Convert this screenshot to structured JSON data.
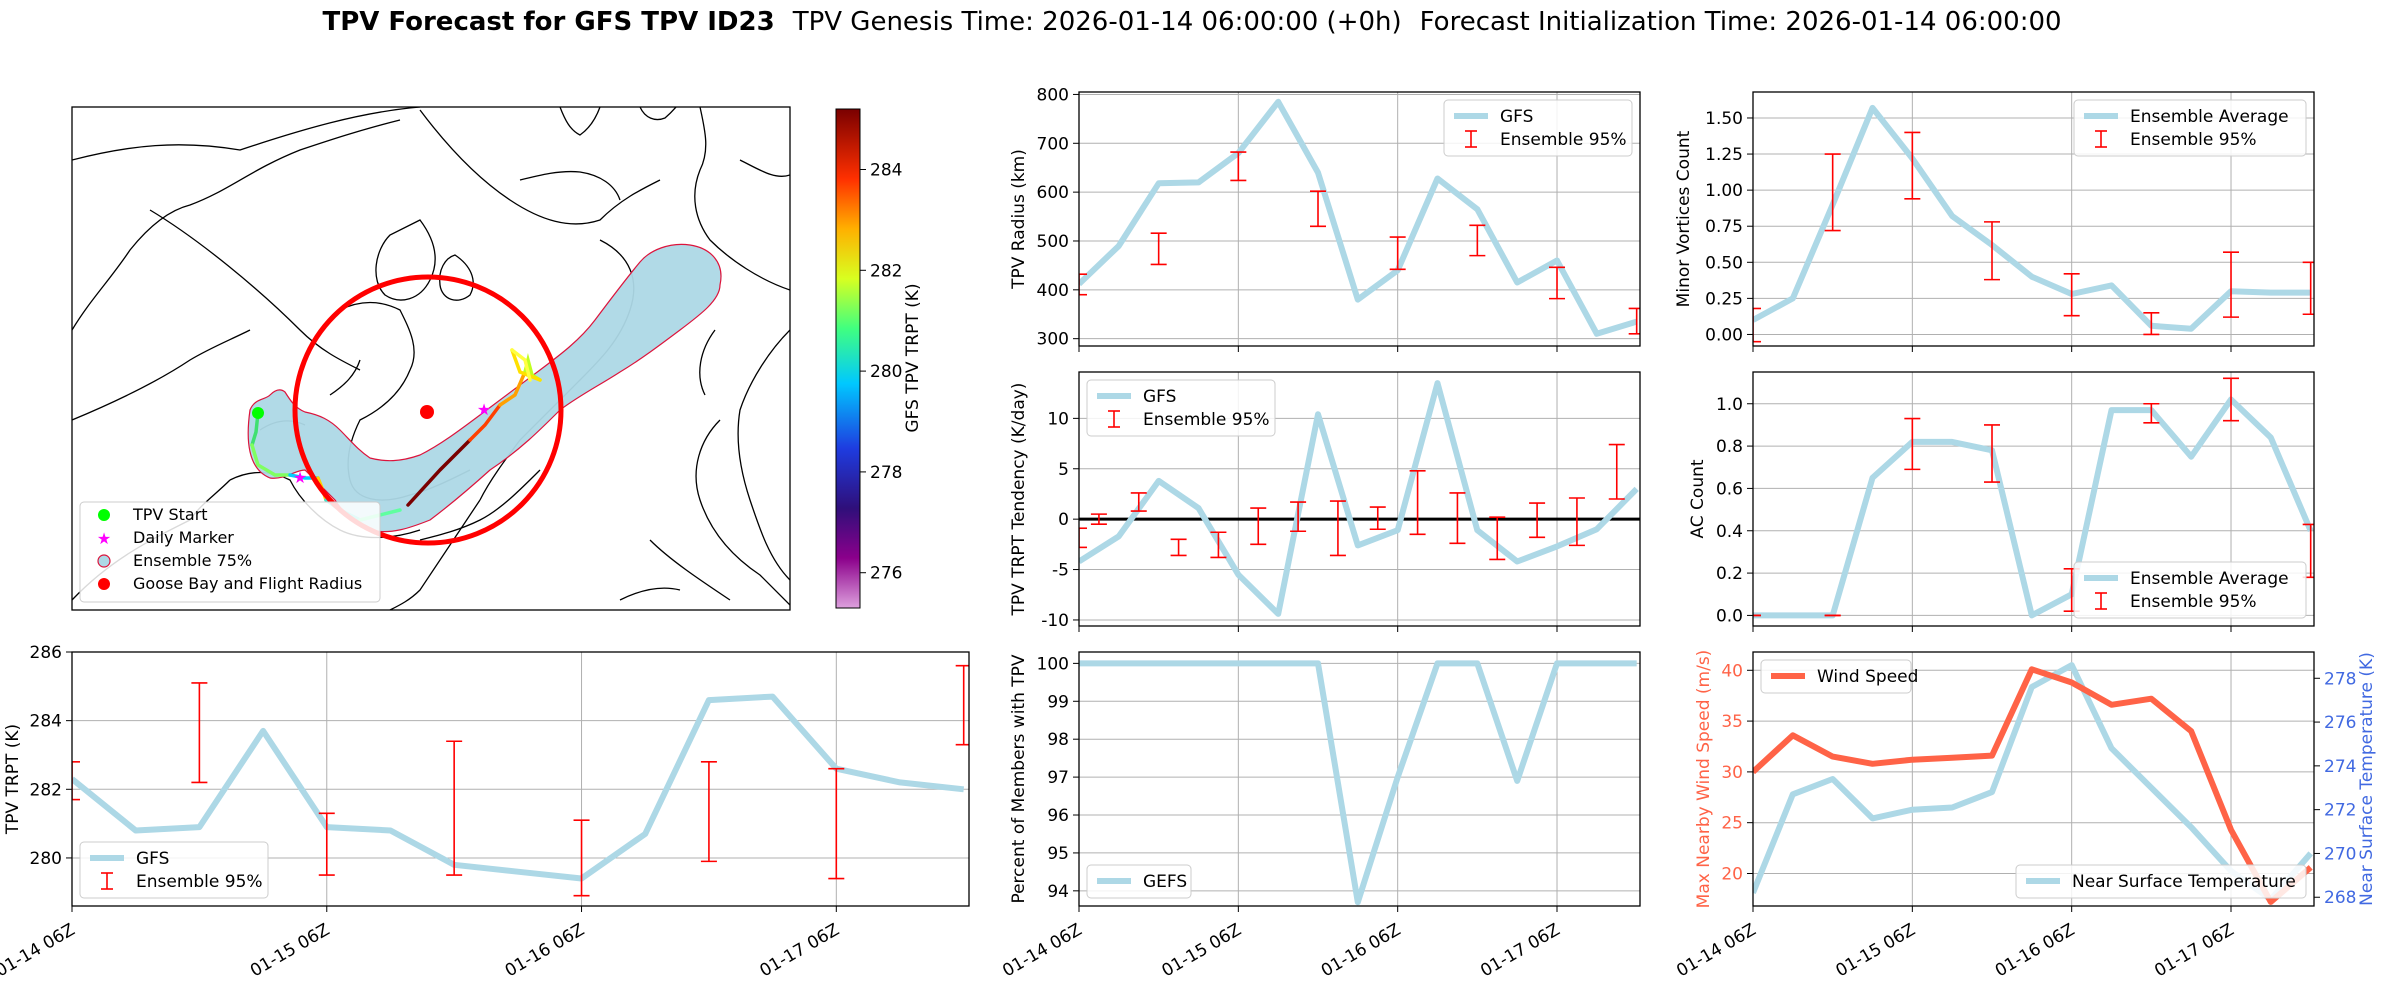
{
  "header": {
    "title_bold": "TPV Forecast for GFS TPV ID23",
    "genesis": "TPV Genesis Time: 2026-01-14 06:00:00 (+0h)",
    "init": "Forecast Initialization Time: 2026-01-14 06:00:00"
  },
  "colors": {
    "gfs_line": "#add8e6",
    "errorbar": "#ff0000",
    "wind": "#ff6347",
    "temp_axis": "#4169e1",
    "circle": "#ff0000",
    "marker_start": "#00ff00",
    "marker_daily": "#ff00ff",
    "goose_bay": "#ff0000"
  },
  "time_ticks": [
    "01-14 06Z",
    "01-15 06Z",
    "01-16 06Z",
    "01-17 06Z"
  ],
  "map": {
    "legend": [
      "TPV Start",
      "Daily Marker",
      "Ensemble 75%",
      "Goose Bay and Flight Radius"
    ],
    "colorbar_label": "GFS TPV TRPT (K)",
    "colorbar_ticks": [
      276,
      278,
      280,
      282,
      284
    ],
    "colorbar_range": [
      275.3,
      285.2
    ]
  },
  "chart_data": [
    {
      "id": "radius",
      "type": "line",
      "ylabel": "TPV Radius (km)",
      "ylim": [
        285,
        805
      ],
      "yticks": [
        300,
        400,
        500,
        600,
        700,
        800
      ],
      "legend_position": "upper right",
      "series": [
        {
          "name": "GFS",
          "kind": "line",
          "x": [
            0,
            6,
            12,
            18,
            24,
            30,
            36,
            42,
            48,
            54,
            60,
            66,
            72,
            78,
            84
          ],
          "y": [
            412,
            490,
            618,
            620,
            680,
            785,
            640,
            380,
            440,
            628,
            565,
            415,
            460,
            310,
            335
          ]
        },
        {
          "name": "Ensemble 95%",
          "kind": "errorbar",
          "x": [
            0,
            12,
            24,
            36,
            48,
            60,
            72,
            84
          ],
          "lo": [
            390,
            452,
            624,
            530,
            442,
            470,
            382,
            310
          ],
          "hi": [
            432,
            516,
            682,
            602,
            508,
            532,
            446,
            362
          ]
        }
      ]
    },
    {
      "id": "minor",
      "type": "line",
      "ylabel": "Minor Vortices Count",
      "ylim": [
        -0.08,
        1.68
      ],
      "yticks": [
        0.0,
        0.25,
        0.5,
        0.75,
        1.0,
        1.25,
        1.5
      ],
      "ytick_labels": [
        "0.00",
        "0.25",
        "0.50",
        "0.75",
        "1.00",
        "1.25",
        "1.50"
      ],
      "legend_position": "upper right",
      "series": [
        {
          "name": "Ensemble Average",
          "kind": "line",
          "x": [
            0,
            6,
            12,
            18,
            24,
            30,
            36,
            42,
            48,
            54,
            60,
            66,
            72,
            78,
            84
          ],
          "y": [
            0.1,
            0.25,
            0.9,
            1.57,
            1.22,
            0.82,
            0.62,
            0.4,
            0.28,
            0.34,
            0.06,
            0.04,
            0.3,
            0.29,
            0.29
          ]
        },
        {
          "name": "Ensemble 95%",
          "kind": "errorbar",
          "x": [
            0,
            12,
            24,
            36,
            48,
            60,
            72,
            84
          ],
          "lo": [
            -0.05,
            0.72,
            0.94,
            0.38,
            0.13,
            0.0,
            0.12,
            0.14
          ],
          "hi": [
            0.18,
            1.25,
            1.4,
            0.78,
            0.42,
            0.15,
            0.57,
            0.5
          ]
        }
      ]
    },
    {
      "id": "tend",
      "type": "line",
      "ylabel": "TPV TRPT Tendency (K/day)",
      "ylim": [
        -10.6,
        14.6
      ],
      "yticks": [
        -10,
        -5,
        0,
        5,
        10
      ],
      "legend_position": "upper left",
      "series": [
        {
          "name": "GFS",
          "kind": "line",
          "x": [
            0,
            6,
            12,
            18,
            24,
            30,
            36,
            42,
            48,
            54,
            60,
            66,
            72,
            78,
            84
          ],
          "y": [
            -4.2,
            -1.7,
            3.8,
            1.1,
            -5.5,
            -9.4,
            10.4,
            -2.6,
            -1.1,
            13.5,
            -1.1,
            -4.2,
            -2.7,
            -1.0,
            3.0
          ]
        },
        {
          "name": "Ensemble 95%",
          "kind": "errorbar",
          "x": [
            0,
            3,
            9,
            15,
            21,
            27,
            33,
            39,
            45,
            51,
            57,
            63,
            69,
            75,
            81,
            87
          ],
          "lo": [
            -2.8,
            -0.5,
            0.8,
            -3.6,
            -3.8,
            -2.5,
            -1.2,
            -3.6,
            -1.0,
            -1.5,
            -2.4,
            -4.0,
            -1.8,
            -2.6,
            2.0,
            0
          ],
          "hi": [
            -0.9,
            0.5,
            2.6,
            -2.0,
            -1.3,
            1.1,
            1.7,
            1.8,
            1.2,
            4.8,
            2.6,
            0.2,
            1.6,
            2.1,
            7.4,
            0
          ]
        }
      ]
    },
    {
      "id": "ac",
      "type": "line",
      "ylabel": "AC Count",
      "ylim": [
        -0.05,
        1.15
      ],
      "yticks": [
        0.0,
        0.2,
        0.4,
        0.6,
        0.8,
        1.0
      ],
      "legend_position": "lower right",
      "series": [
        {
          "name": "Ensemble Average",
          "kind": "line",
          "x": [
            0,
            6,
            12,
            18,
            24,
            30,
            36,
            42,
            48,
            54,
            60,
            66,
            72,
            78,
            84
          ],
          "y": [
            0,
            0,
            0,
            0.65,
            0.82,
            0.82,
            0.78,
            0,
            0.1,
            0.97,
            0.97,
            0.75,
            1.02,
            0.84,
            0.4
          ]
        },
        {
          "name": "Ensemble 95%",
          "kind": "errorbar",
          "x": [
            0,
            12,
            24,
            36,
            48,
            60,
            72,
            84
          ],
          "lo": [
            0,
            0,
            0.69,
            0.63,
            0.02,
            0.91,
            0.92,
            0.18
          ],
          "hi": [
            0,
            0,
            0.93,
            0.9,
            0.22,
            1.0,
            1.12,
            0.43
          ]
        }
      ]
    },
    {
      "id": "trpt",
      "type": "line",
      "ylabel": "TPV TRPT (K)",
      "ylim": [
        278.6,
        286.0
      ],
      "yticks": [
        280,
        282,
        284,
        286
      ],
      "legend_position": "lower left",
      "series": [
        {
          "name": "GFS",
          "kind": "line",
          "x": [
            0,
            6,
            12,
            18,
            24,
            30,
            36,
            42,
            48,
            54,
            60,
            66,
            72,
            78,
            84
          ],
          "y": [
            282.3,
            280.8,
            280.9,
            283.7,
            280.9,
            280.8,
            279.8,
            279.6,
            279.4,
            280.7,
            284.6,
            284.7,
            282.6,
            282.2,
            282.0
          ]
        },
        {
          "name": "Ensemble 95%",
          "kind": "errorbar",
          "x": [
            0,
            12,
            24,
            36,
            48,
            60,
            72,
            84
          ],
          "lo": [
            281.7,
            282.2,
            279.5,
            279.5,
            278.9,
            279.9,
            279.4,
            283.3
          ],
          "hi": [
            282.8,
            285.1,
            281.3,
            283.4,
            281.1,
            282.8,
            282.6,
            285.6
          ]
        }
      ]
    },
    {
      "id": "percent",
      "type": "line",
      "ylabel": "Percent of Members with TPV",
      "ylim": [
        93.6,
        100.3
      ],
      "yticks": [
        94,
        95,
        96,
        97,
        98,
        99,
        100
      ],
      "legend_position": "lower left",
      "series": [
        {
          "name": "GEFS",
          "kind": "line",
          "x": [
            0,
            6,
            12,
            18,
            24,
            30,
            36,
            42,
            48,
            54,
            60,
            66,
            72,
            78,
            84
          ],
          "y": [
            100,
            100,
            100,
            100,
            100,
            100,
            100,
            93.7,
            97.0,
            100,
            100,
            96.9,
            100,
            100,
            100
          ]
        }
      ]
    },
    {
      "id": "wind",
      "type": "line",
      "ylabel_left": "Max Nearby Wind Speed (m/s)",
      "ylabel_right": "Near Surface Temperature (K)",
      "ylim_left": [
        16.8,
        41.8
      ],
      "yticks_left": [
        20,
        25,
        30,
        35,
        40
      ],
      "ylim_right": [
        267.6,
        279.2
      ],
      "yticks_right": [
        268,
        270,
        272,
        274,
        276,
        278
      ],
      "series": [
        {
          "name": "Wind Speed",
          "axis": "left",
          "kind": "line",
          "legend_position": "upper left",
          "x": [
            0,
            6,
            12,
            18,
            24,
            30,
            36,
            42,
            48,
            54,
            60,
            66,
            72,
            78,
            84
          ],
          "y": [
            30.0,
            33.6,
            31.5,
            30.8,
            31.2,
            31.4,
            31.6,
            40.1,
            38.8,
            36.6,
            37.2,
            34.0,
            24.3,
            17.2,
            20.6
          ]
        },
        {
          "name": "Near Surface Temperature",
          "axis": "right",
          "kind": "line",
          "legend_position": "lower right",
          "x": [
            0,
            6,
            12,
            18,
            24,
            30,
            36,
            42,
            48,
            54,
            60,
            66,
            72,
            78,
            84
          ],
          "y": [
            268.2,
            272.7,
            273.4,
            271.6,
            272.0,
            272.1,
            272.8,
            277.6,
            278.6,
            274.8,
            273.0,
            271.2,
            269.2,
            267.9,
            270.0
          ]
        }
      ]
    }
  ]
}
